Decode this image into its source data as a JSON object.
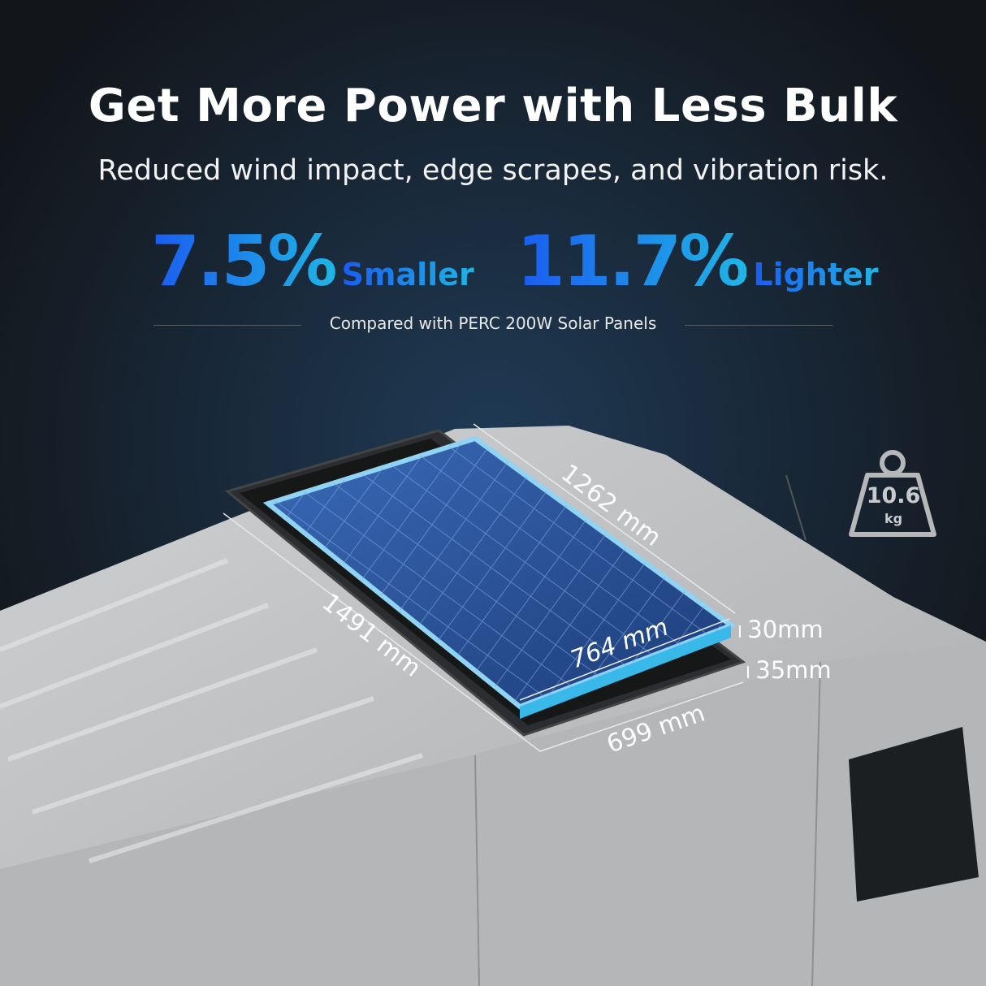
{
  "headline": "Get More Power with Less Bulk",
  "subheadline": "Reduced wind impact, edge scrapes, and vibration risk.",
  "stats": [
    {
      "value": "7.5%",
      "label": "Smaller"
    },
    {
      "value": "11.7%",
      "label": "Lighter"
    }
  ],
  "comparison_note": "Compared with PERC 200W Solar Panels",
  "dimensions": {
    "new_length": "1262 mm",
    "new_width": "764 mm",
    "new_thickness": "30mm",
    "old_length": "1491 mm",
    "old_width": "699 mm",
    "old_thickness": "35mm"
  },
  "weight": {
    "value": "10.6",
    "unit": "kg",
    "icon": "weight-icon"
  },
  "colors": {
    "accent_blue": "#1a5cf0",
    "accent_cyan": "#1fb5e6",
    "background": "#111418",
    "van": "#bfc1c3"
  }
}
